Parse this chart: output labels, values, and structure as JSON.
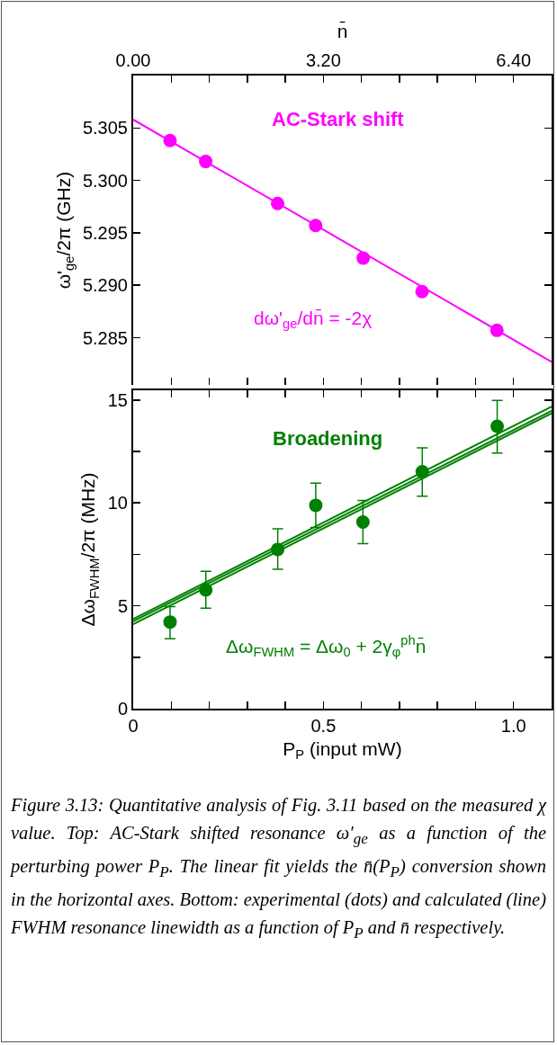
{
  "chart_data": [
    {
      "type": "scatter",
      "marker": "circle",
      "grid": false,
      "ylabel": "ω'$_{ge}$/2π (GHz)",
      "xlabel": "n̄",
      "annotations": [
        "AC-Stark shift",
        "dω'$_{ge}$/dn̄ = -2χ"
      ],
      "xlim": [
        0,
        7.04
      ],
      "xticks": [
        {
          "value": 0,
          "label": "0.00"
        },
        {
          "value": 0.64,
          "label": null
        },
        {
          "value": 1.28,
          "label": null
        },
        {
          "value": 1.92,
          "label": null
        },
        {
          "value": 2.56,
          "label": null
        },
        {
          "value": 3.2,
          "label": "3.20"
        },
        {
          "value": 3.84,
          "label": null
        },
        {
          "value": 4.48,
          "label": null
        },
        {
          "value": 5.12,
          "label": null
        },
        {
          "value": 5.76,
          "label": null
        },
        {
          "value": 6.4,
          "label": "6.40"
        }
      ],
      "ylim": [
        5.2805,
        5.31
      ],
      "yticks": [
        5.285,
        {
          "value": 5.29,
          "label": "5.290"
        },
        5.295,
        {
          "value": 5.3,
          "label": "5.300"
        },
        5.305
      ],
      "series": [
        {
          "color": "#ff00ff",
          "x": [
            0.62,
            1.22,
            2.43,
            3.07,
            3.87,
            4.86,
            6.12
          ],
          "values": [
            5.3038,
            5.3018,
            5.2978,
            5.2957,
            5.2926,
            5.2894,
            5.2857
          ]
        },
        {
          "type": "line",
          "marker": "none",
          "color": "#ff00ff",
          "x": [
            0,
            7.04
          ],
          "values": [
            5.3058,
            5.2827
          ]
        }
      ]
    },
    {
      "type": "scatter",
      "marker": "circle",
      "grid": false,
      "ylabel": "Δω$_{FWHM}$/2π (MHz)",
      "xlabel": "P$_{P}$ (input mW)",
      "annotations": [
        "Broadening",
        "Δω$_{FWHM}$ = Δω$_{0}$ + 2γ$_{φ}$$^{ph}$n̄",
        "Figure 3.13: Quantitative analysis of Fig. 3.11 based on the measured χ value. Top: AC-Stark shifted resonance ω′$_{ge}$ as a function of the perturbing power P$_{P}$. The linear fit yields the n̄(P$_{P}$) conversion shown in the horizontal axes. Bottom: experimental (dots) and calculated (line) FWHM resonance linewidth as a function of P$_{P}$ and n̄ respectively."
      ],
      "xlim": [
        0,
        1.1
      ],
      "xticks": [
        0.0,
        {
          "value": 0.1,
          "label": null
        },
        {
          "value": 0.2,
          "label": null
        },
        {
          "value": 0.3,
          "label": null
        },
        {
          "value": 0.4,
          "label": null
        },
        0.5,
        {
          "value": 0.6,
          "label": null
        },
        {
          "value": 0.7,
          "label": null
        },
        {
          "value": 0.8,
          "label": null
        },
        {
          "value": 0.9,
          "label": null
        },
        {
          "value": 1.0,
          "label": "1.0"
        }
      ],
      "ylim": [
        0,
        15.47
      ],
      "yticks": [
        0,
        {
          "value": 2.5,
          "label": null
        },
        5,
        {
          "value": 7.5,
          "label": null
        },
        10,
        {
          "value": 12.5,
          "label": null
        },
        15
      ],
      "series": [
        {
          "color": "#008000",
          "x": [
            0.097,
            0.191,
            0.38,
            0.48,
            0.604,
            0.76,
            0.957
          ],
          "values": [
            4.21,
            5.77,
            7.74,
            9.88,
            9.07,
            11.51,
            13.72
          ],
          "errors": [
            [
              3.4,
              4.96
            ],
            [
              4.88,
              6.67
            ],
            [
              6.77,
              8.74
            ],
            [
              8.81,
              10.96
            ],
            [
              8.02,
              10.12
            ],
            [
              10.32,
              12.67
            ],
            [
              12.42,
              14.98
            ]
          ]
        },
        {
          "type": "line",
          "marker": "none",
          "color": "#008000",
          "x": [
            0,
            1.1
          ],
          "values": [
            4.25,
            14.47
          ]
        },
        {
          "type": "line",
          "marker": "none",
          "color": "#008000",
          "x": [
            0,
            1.1
          ],
          "values": [
            4.35,
            14.68
          ]
        },
        {
          "type": "line",
          "marker": "none",
          "color": "#008000",
          "x": [
            0,
            1.1
          ],
          "values": [
            4.1,
            14.35
          ]
        }
      ]
    }
  ]
}
